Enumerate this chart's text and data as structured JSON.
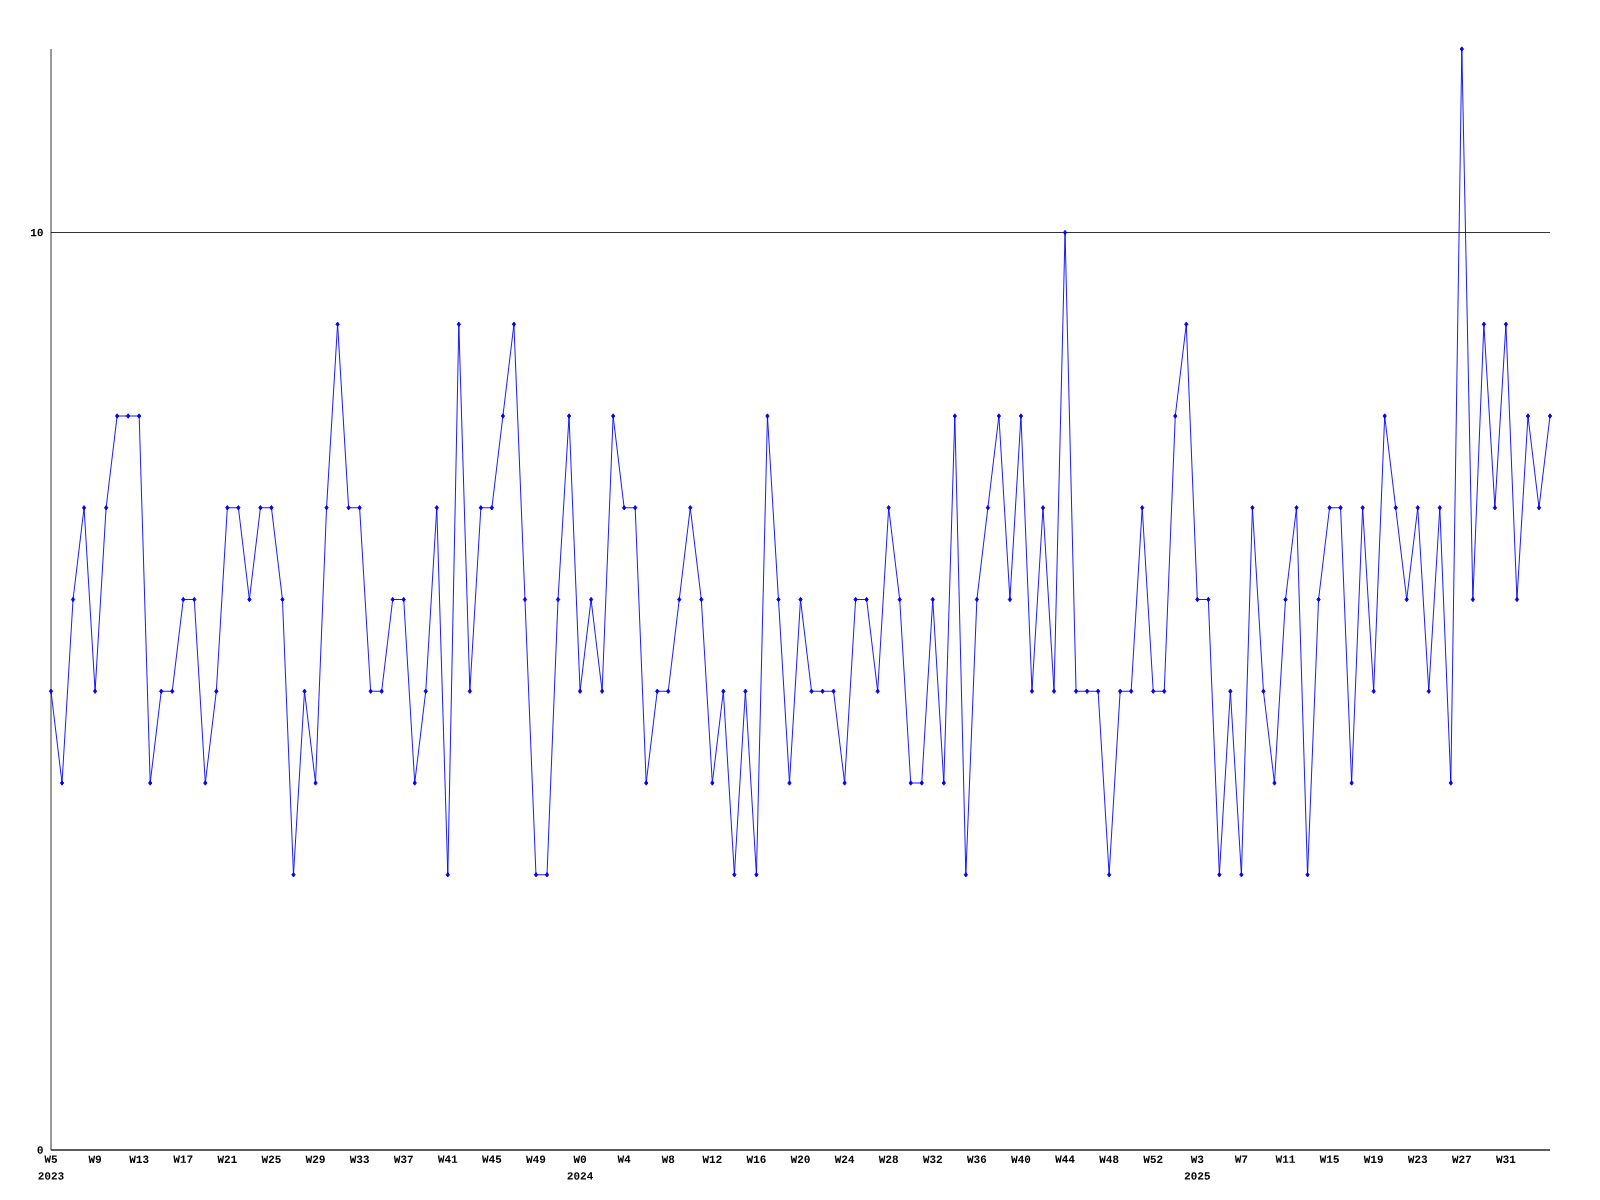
{
  "chart_data": {
    "type": "line",
    "categories": [
      "W5",
      null,
      null,
      null,
      "W9",
      null,
      null,
      null,
      "W13",
      null,
      null,
      null,
      "W17",
      null,
      null,
      null,
      "W21",
      null,
      null,
      null,
      "W25",
      null,
      null,
      null,
      "W29",
      null,
      null,
      null,
      "W33",
      null,
      null,
      null,
      "W37",
      null,
      null,
      null,
      "W41",
      null,
      null,
      null,
      "W45",
      null,
      null,
      null,
      "W49",
      null,
      null,
      null,
      "W0",
      null,
      null,
      null,
      "W4",
      null,
      null,
      null,
      "W8",
      null,
      null,
      null,
      "W12",
      null,
      null,
      null,
      "W16",
      null,
      null,
      null,
      "W20",
      null,
      null,
      null,
      "W24",
      null,
      null,
      null,
      "W28",
      null,
      null,
      null,
      "W32",
      null,
      null,
      null,
      "W36",
      null,
      null,
      null,
      "W40",
      null,
      null,
      null,
      "W44",
      null,
      null,
      null,
      "W48",
      null,
      null,
      null,
      "W52",
      null,
      null,
      null,
      "W3",
      null,
      null,
      null,
      "W7",
      null,
      null,
      null,
      "W11",
      null,
      null,
      null,
      "W15",
      null,
      null,
      null,
      "W19",
      null,
      null,
      null,
      "W23",
      null,
      null,
      null,
      "W27",
      null,
      null,
      null,
      "W31",
      null,
      null,
      null,
      null
    ],
    "series": [
      {
        "color": "#0000ff",
        "values": [
          5,
          4,
          6,
          7,
          5,
          7,
          8,
          8,
          8,
          4,
          5,
          5,
          6,
          6,
          4,
          5,
          7,
          7,
          6,
          7,
          7,
          6,
          3,
          5,
          4,
          7,
          9,
          7,
          7,
          5,
          5,
          6,
          6,
          4,
          5,
          7,
          3,
          9,
          5,
          7,
          7,
          8,
          9,
          6,
          3,
          3,
          6,
          8,
          5,
          6,
          5,
          8,
          7,
          7,
          4,
          5,
          5,
          6,
          7,
          6,
          4,
          5,
          3,
          5,
          3,
          8,
          6,
          4,
          6,
          5,
          5,
          5,
          4,
          6,
          6,
          5,
          7,
          6,
          4,
          4,
          6,
          4,
          8,
          3,
          6,
          7,
          8,
          6,
          8,
          5,
          7,
          5,
          10,
          5,
          5,
          5,
          3,
          5,
          5,
          7,
          5,
          5,
          8,
          9,
          6,
          6,
          3,
          5,
          3,
          7,
          5,
          4,
          6,
          7,
          3,
          6,
          7,
          7,
          4,
          7,
          5,
          8,
          7,
          6,
          7,
          5,
          7,
          4,
          12,
          6,
          9,
          7,
          9,
          6,
          8,
          7,
          8
        ]
      }
    ],
    "ylim": [
      0,
      12
    ],
    "yticks": [
      0,
      10
    ],
    "grid": "y",
    "marker": "diamond",
    "line_style": "solid",
    "annotations": [
      "2023",
      "2024",
      "2025"
    ]
  }
}
